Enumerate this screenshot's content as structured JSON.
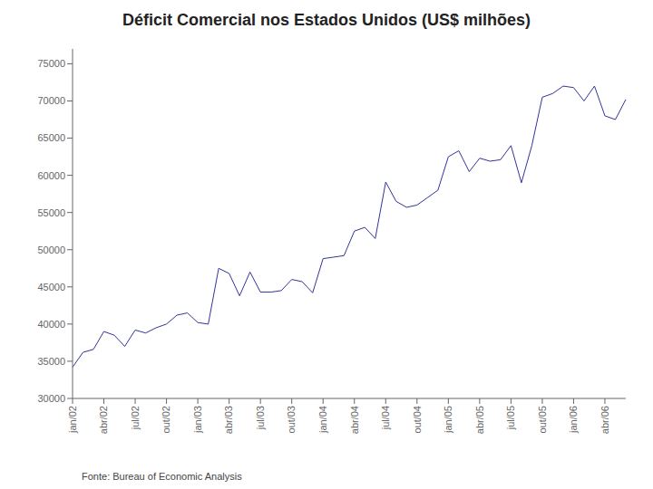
{
  "chart_data": {
    "type": "line",
    "title": "Déficit Comercial nos Estados Unidos (US$ milhões)",
    "annotations": [
      "Fonte: Bureau of Economic Analysis"
    ],
    "categories": [
      "jan/02",
      null,
      null,
      "abr/02",
      null,
      null,
      "jul/02",
      null,
      null,
      "out/02",
      null,
      null,
      "jan/03",
      null,
      null,
      "abr/03",
      null,
      null,
      "jul/03",
      null,
      null,
      "out/03",
      null,
      null,
      "jan/04",
      null,
      null,
      "abr/04",
      null,
      null,
      "jul/04",
      null,
      null,
      "out/04",
      null,
      null,
      "jan/05",
      null,
      null,
      "abr/05",
      null,
      null,
      "jul/05",
      null,
      null,
      "out/05",
      null,
      null,
      "jan/06",
      null,
      null,
      "abr/06",
      null,
      null
    ],
    "values": [
      34200,
      36200,
      36600,
      39000,
      38500,
      37000,
      39200,
      38800,
      39500,
      40000,
      41200,
      41500,
      40200,
      40000,
      47500,
      46800,
      43800,
      47000,
      44300,
      44300,
      44500,
      46000,
      45700,
      44200,
      48800,
      49000,
      49200,
      52500,
      53000,
      51500,
      59100,
      56500,
      55700,
      56000,
      57000,
      58000,
      62500,
      63300,
      60500,
      62300,
      61900,
      62100,
      64000,
      59000,
      64000,
      70500,
      71000,
      72000,
      71800,
      70000,
      72000,
      68000,
      67500,
      70200
    ],
    "color": "#333399",
    "ylim": [
      30000,
      77000
    ],
    "yticks": [
      30000,
      35000,
      40000,
      45000,
      50000,
      55000,
      60000,
      65000,
      70000,
      75000
    ],
    "grid": false
  }
}
